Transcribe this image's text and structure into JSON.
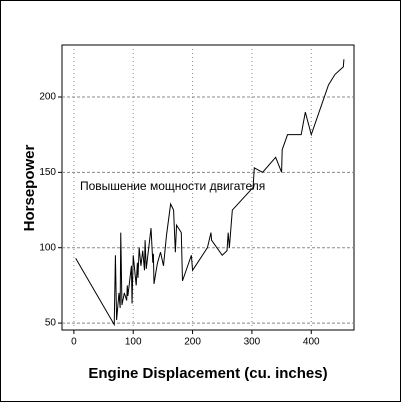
{
  "chart_data": {
    "type": "line",
    "x_label": "Engine Displacement (cu. inches)",
    "y_label": "Horsepower",
    "annotation": "Повышение мощности двигателя",
    "series": [
      {
        "name": "Horsepower",
        "color": "#000000",
        "x": [
          3,
          68,
          70,
          72,
          76,
          78,
          79,
          81,
          85,
          89,
          90,
          91,
          97,
          98,
          100,
          105,
          107,
          108,
          110,
          113,
          116,
          119,
          120,
          121,
          122,
          130,
          133,
          134,
          135,
          140,
          141,
          146,
          151,
          156,
          163,
          168,
          171,
          173,
          181,
          183,
          198,
          200,
          225,
          231,
          232,
          250,
          258,
          260,
          262,
          267,
          302,
          304,
          318,
          340,
          350,
          351,
          360,
          383,
          390,
          400,
          429,
          440,
          454,
          455
        ],
        "values": [
          93,
          49,
          95,
          52,
          70,
          60,
          110,
          62,
          70,
          65,
          75,
          68,
          88,
          63,
          95,
          75,
          90,
          80,
          100,
          88,
          98,
          85,
          105,
          95,
          86,
          113,
          90,
          96,
          76,
          88,
          90,
          97,
          88,
          108,
          129,
          125,
          97,
          115,
          110,
          78,
          95,
          85,
          100,
          110,
          105,
          95,
          98,
          110,
          100,
          125,
          140,
          153,
          150,
          160,
          150,
          165,
          175,
          175,
          190,
          175,
          208,
          215,
          220,
          225
        ]
      }
    ],
    "xlim": [
      -20,
      472
    ],
    "ylim": [
      45.4,
      234.5
    ],
    "xticks": [
      0,
      100,
      200,
      300,
      400
    ],
    "yticks": [
      50,
      100,
      150,
      200
    ],
    "grid": true
  }
}
